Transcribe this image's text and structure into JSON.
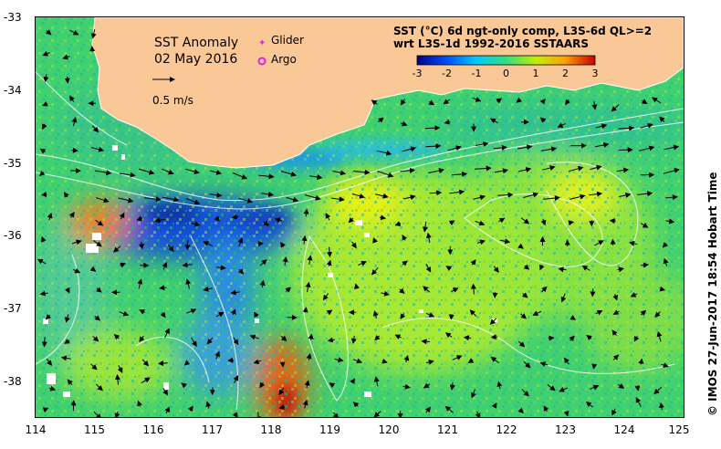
{
  "title": "SST Anomaly",
  "date": "02 May 2016",
  "speed_scale_label": "0.5 m/s",
  "legend": {
    "glider": {
      "label": "Glider",
      "color": "#e020e0"
    },
    "argo": {
      "label": "Argo",
      "color": "#e020e0"
    }
  },
  "product": {
    "line1": "SST (°C) 6d ngt-only comp, L3S-6d QL>=2",
    "line2": "wrt L3S-1d 1992-2016 SSTAARS"
  },
  "colorbar": {
    "ticks": [
      "-3",
      "-2",
      "-1",
      "0",
      "1",
      "2",
      "3"
    ],
    "range": [
      -3,
      3
    ],
    "colors": [
      "#00008c",
      "#0050ff",
      "#00c8ff",
      "#30e080",
      "#c0f000",
      "#ffa000",
      "#c80000"
    ]
  },
  "x_axis": {
    "ticks": [
      "114",
      "115",
      "116",
      "117",
      "118",
      "119",
      "120",
      "121",
      "122",
      "123",
      "124",
      "125"
    ],
    "range": [
      114,
      125
    ]
  },
  "y_axis": {
    "ticks": [
      "-33",
      "-34",
      "-35",
      "-36",
      "-37",
      "-38"
    ],
    "range": [
      -38.5,
      -33
    ]
  },
  "credit": "© IMOS 27-Jun-2017 18:54 Hobart Time",
  "colors": {
    "land": "#fac896",
    "sea_green": "#40d070",
    "cool_blue": "#2a7ae0",
    "warm_yellow": "#d8f020",
    "hot_orange": "#f08020"
  }
}
